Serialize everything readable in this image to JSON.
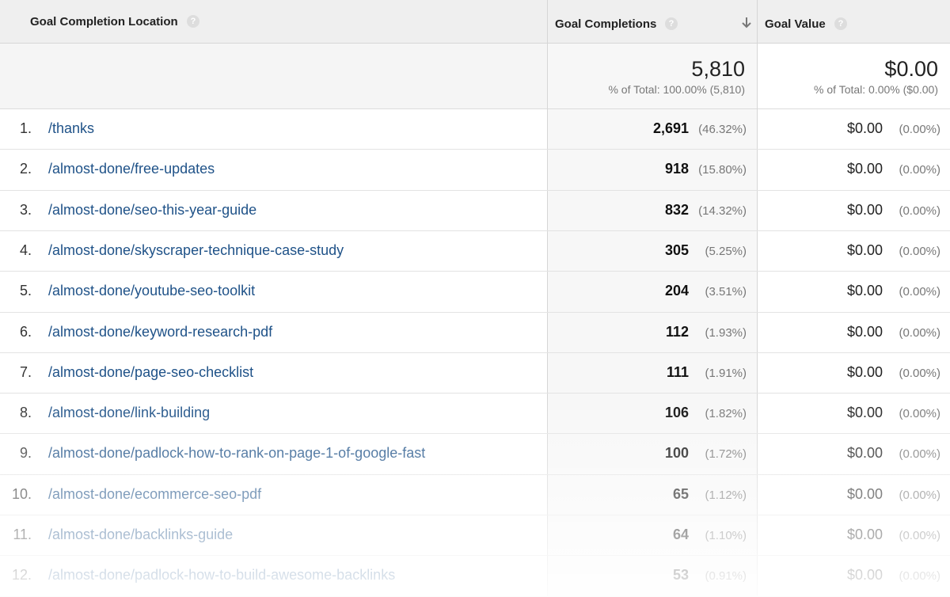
{
  "header": {
    "location": "Goal Completion Location",
    "help": "?",
    "completions": "Goal Completions",
    "value": "Goal Value"
  },
  "totals": {
    "completions": "5,810",
    "completions_note": "% of Total: 100.00% (5,810)",
    "value": "$0.00",
    "value_note": "% of Total: 0.00% ($0.00)"
  },
  "rows": [
    [
      "1.",
      "/thanks",
      "2,691",
      "(46.32%)",
      "$0.00",
      "(0.00%)"
    ],
    [
      "2.",
      "/almost-done/free-updates",
      "918",
      "(15.80%)",
      "$0.00",
      "(0.00%)"
    ],
    [
      "3.",
      "/almost-done/seo-this-year-guide",
      "832",
      "(14.32%)",
      "$0.00",
      "(0.00%)"
    ],
    [
      "4.",
      "/almost-done/skyscraper-technique-case-study",
      "305",
      "(5.25%)",
      "$0.00",
      "(0.00%)"
    ],
    [
      "5.",
      "/almost-done/youtube-seo-toolkit",
      "204",
      "(3.51%)",
      "$0.00",
      "(0.00%)"
    ],
    [
      "6.",
      "/almost-done/keyword-research-pdf",
      "112",
      "(1.93%)",
      "$0.00",
      "(0.00%)"
    ],
    [
      "7.",
      "/almost-done/page-seo-checklist",
      "111",
      "(1.91%)",
      "$0.00",
      "(0.00%)"
    ],
    [
      "8.",
      "/almost-done/link-building",
      "106",
      "(1.82%)",
      "$0.00",
      "(0.00%)"
    ],
    [
      "9.",
      "/almost-done/padlock-how-to-rank-on-page-1-of-google-fast",
      "100",
      "(1.72%)",
      "$0.00",
      "(0.00%)"
    ],
    [
      "10.",
      "/almost-done/ecommerce-seo-pdf",
      "65",
      "(1.12%)",
      "$0.00",
      "(0.00%)"
    ],
    [
      "11.",
      "/almost-done/backlinks-guide",
      "64",
      "(1.10%)",
      "$0.00",
      "(0.00%)"
    ],
    [
      "12.",
      "/almost-done/padlock-how-to-build-awesome-backlinks",
      "53",
      "(0.91%)",
      "$0.00",
      "(0.00%)"
    ]
  ]
}
